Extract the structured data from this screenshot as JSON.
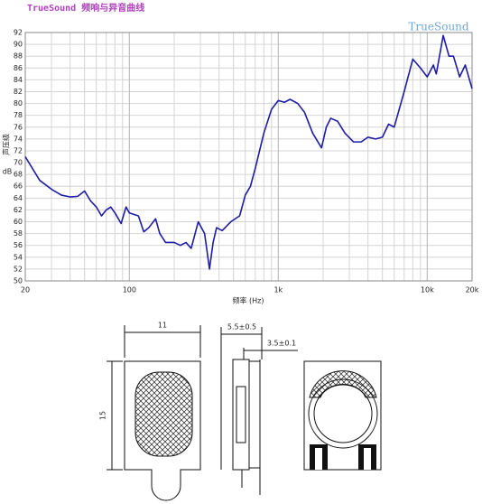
{
  "chart_data": {
    "type": "line",
    "title": "TrueSound 频响与异音曲线",
    "watermark": "TrueSound",
    "xlabel": "频率 (Hz)",
    "ylabel": "声压级",
    "yunit": "dB",
    "x": [
      20,
      25,
      30,
      35,
      40,
      45,
      50,
      55,
      60,
      65,
      70,
      75,
      80,
      88,
      95,
      100,
      115,
      125,
      135,
      150,
      160,
      175,
      200,
      220,
      240,
      260,
      290,
      320,
      345,
      365,
      385,
      420,
      480,
      550,
      600,
      650,
      700,
      800,
      900,
      1000,
      1100,
      1200,
      1350,
      1500,
      1700,
      1950,
      2100,
      2250,
      2500,
      2800,
      3200,
      3600,
      4000,
      4500,
      5000,
      5500,
      6000,
      7000,
      8000,
      9000,
      10000,
      11000,
      11500,
      12800,
      14000,
      15000,
      16500,
      18000,
      20000
    ],
    "series": [
      {
        "color": "#1c1ca6",
        "values": [
          71,
          67,
          65.5,
          64.5,
          64.2,
          64.3,
          65.2,
          63.5,
          62.5,
          61,
          62,
          62.5,
          61.5,
          59.7,
          62.5,
          61.5,
          61,
          58.3,
          59,
          60.5,
          58,
          56.5,
          56.5,
          56,
          56.5,
          55.5,
          60,
          58,
          52,
          56.5,
          59,
          58.5,
          60,
          61,
          64.5,
          66,
          69,
          75,
          79,
          80.5,
          80.2,
          80.7,
          80,
          78.5,
          75,
          72.5,
          76,
          77.5,
          77,
          75,
          73.5,
          73.5,
          74.3,
          74,
          74.3,
          76.5,
          76,
          82,
          87.5,
          86,
          84.5,
          86.5,
          85,
          91.5,
          88,
          88,
          84.5,
          86.5,
          82.5
        ]
      }
    ],
    "xlim": [
      20,
      20000
    ],
    "xlog": true,
    "xticks": [
      20,
      100,
      {
        "value": 1000,
        "label": "1k"
      },
      {
        "value": 10000,
        "label": "10k"
      },
      {
        "value": 20000,
        "label": "20k"
      }
    ],
    "ylim": [
      50,
      92
    ],
    "yticks": [
      50,
      52,
      54,
      56,
      58,
      60,
      62,
      64,
      66,
      68,
      70,
      72,
      74,
      76,
      78,
      80,
      82,
      84,
      86,
      88,
      90,
      92
    ],
    "grid": true
  },
  "drawing": {
    "width": "11",
    "height": "15",
    "depth": "5.5±0.5",
    "depth_inner": "3.5±0.1"
  }
}
